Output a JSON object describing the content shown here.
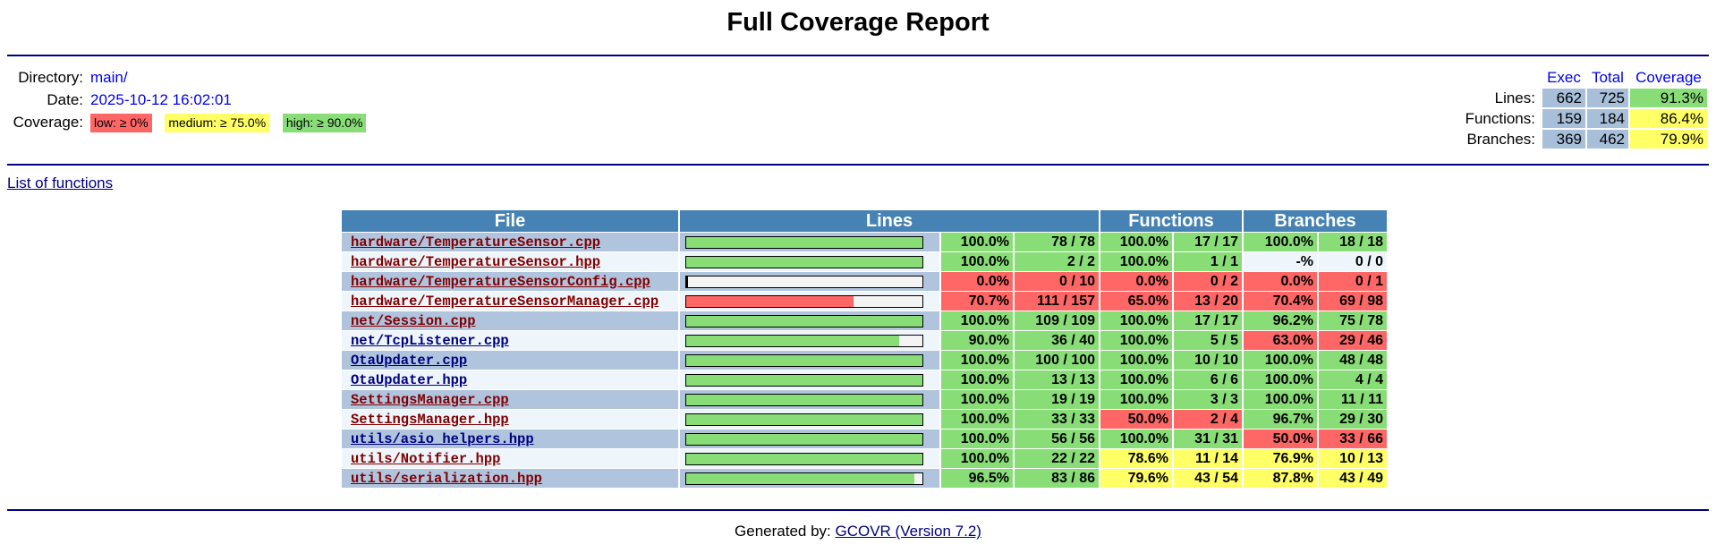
{
  "title": "Full Coverage Report",
  "info": {
    "directory_label": "Directory:",
    "directory_value": "main/",
    "date_label": "Date:",
    "date_value": "2025-10-12 16:02:01",
    "coverage_label": "Coverage:",
    "legend": {
      "low": "low: ≥ 0%",
      "medium": "medium: ≥ 75.0%",
      "high": "high: ≥ 90.0%"
    }
  },
  "summary": {
    "headers": {
      "exec": "Exec",
      "total": "Total",
      "coverage": "Coverage"
    },
    "rows": [
      {
        "label": "Lines:",
        "exec": "662",
        "total": "725",
        "coverage": "91.3%",
        "level": "high"
      },
      {
        "label": "Functions:",
        "exec": "159",
        "total": "184",
        "coverage": "86.4%",
        "level": "medium"
      },
      {
        "label": "Branches:",
        "exec": "369",
        "total": "462",
        "coverage": "79.9%",
        "level": "medium"
      }
    ]
  },
  "list_of_functions": "List of functions",
  "table": {
    "headers": {
      "file": "File",
      "lines": "Lines",
      "functions": "Functions",
      "branches": "Branches"
    },
    "rows": [
      {
        "file": "hardware/TemperatureSensor.cpp",
        "link": "low",
        "line_frac": 1.0,
        "line_pct": "100.0%",
        "line_cnt": "78 / 78",
        "line_level": "high",
        "func_pct": "100.0%",
        "func_cnt": "17 / 17",
        "func_level": "high",
        "br_pct": "100.0%",
        "br_cnt": "18 / 18",
        "br_level": "high"
      },
      {
        "file": "hardware/TemperatureSensor.hpp",
        "link": "low",
        "line_frac": 1.0,
        "line_pct": "100.0%",
        "line_cnt": "2 / 2",
        "line_level": "high",
        "func_pct": "100.0%",
        "func_cnt": "1 / 1",
        "func_level": "high",
        "br_pct": "-%",
        "br_cnt": "0 / 0",
        "br_level": "none"
      },
      {
        "file": "hardware/TemperatureSensorConfig.cpp",
        "link": "low",
        "line_frac": 0.0,
        "line_pct": "0.0%",
        "line_cnt": "0 / 10",
        "line_level": "low",
        "func_pct": "0.0%",
        "func_cnt": "0 / 2",
        "func_level": "low",
        "br_pct": "0.0%",
        "br_cnt": "0 / 1",
        "br_level": "low"
      },
      {
        "file": "hardware/TemperatureSensorManager.cpp",
        "link": "low",
        "line_frac": 0.707,
        "line_pct": "70.7%",
        "line_cnt": "111 / 157",
        "line_level": "low",
        "func_pct": "65.0%",
        "func_cnt": "13 / 20",
        "func_level": "low",
        "br_pct": "70.4%",
        "br_cnt": "69 / 98",
        "br_level": "low"
      },
      {
        "file": "net/Session.cpp",
        "link": "low",
        "line_frac": 1.0,
        "line_pct": "100.0%",
        "line_cnt": "109 / 109",
        "line_level": "high",
        "func_pct": "100.0%",
        "func_cnt": "17 / 17",
        "func_level": "high",
        "br_pct": "96.2%",
        "br_cnt": "75 / 78",
        "br_level": "high"
      },
      {
        "file": "net/TcpListener.cpp",
        "link": "high",
        "line_frac": 0.9,
        "line_pct": "90.0%",
        "line_cnt": "36 / 40",
        "line_level": "high",
        "func_pct": "100.0%",
        "func_cnt": "5 / 5",
        "func_level": "high",
        "br_pct": "63.0%",
        "br_cnt": "29 / 46",
        "br_level": "low"
      },
      {
        "file": "OtaUpdater.cpp",
        "link": "high",
        "line_frac": 1.0,
        "line_pct": "100.0%",
        "line_cnt": "100 / 100",
        "line_level": "high",
        "func_pct": "100.0%",
        "func_cnt": "10 / 10",
        "func_level": "high",
        "br_pct": "100.0%",
        "br_cnt": "48 / 48",
        "br_level": "high"
      },
      {
        "file": "OtaUpdater.hpp",
        "link": "high",
        "line_frac": 1.0,
        "line_pct": "100.0%",
        "line_cnt": "13 / 13",
        "line_level": "high",
        "func_pct": "100.0%",
        "func_cnt": "6 / 6",
        "func_level": "high",
        "br_pct": "100.0%",
        "br_cnt": "4 / 4",
        "br_level": "high"
      },
      {
        "file": "SettingsManager.cpp",
        "link": "low",
        "line_frac": 1.0,
        "line_pct": "100.0%",
        "line_cnt": "19 / 19",
        "line_level": "high",
        "func_pct": "100.0%",
        "func_cnt": "3 / 3",
        "func_level": "high",
        "br_pct": "100.0%",
        "br_cnt": "11 / 11",
        "br_level": "high"
      },
      {
        "file": "SettingsManager.hpp",
        "link": "low",
        "line_frac": 1.0,
        "line_pct": "100.0%",
        "line_cnt": "33 / 33",
        "line_level": "high",
        "func_pct": "50.0%",
        "func_cnt": "2 / 4",
        "func_level": "low",
        "br_pct": "96.7%",
        "br_cnt": "29 / 30",
        "br_level": "high"
      },
      {
        "file": "utils/asio_helpers.hpp",
        "link": "high",
        "line_frac": 1.0,
        "line_pct": "100.0%",
        "line_cnt": "56 / 56",
        "line_level": "high",
        "func_pct": "100.0%",
        "func_cnt": "31 / 31",
        "func_level": "high",
        "br_pct": "50.0%",
        "br_cnt": "33 / 66",
        "br_level": "low"
      },
      {
        "file": "utils/Notifier.hpp",
        "link": "low",
        "line_frac": 1.0,
        "line_pct": "100.0%",
        "line_cnt": "22 / 22",
        "line_level": "high",
        "func_pct": "78.6%",
        "func_cnt": "11 / 14",
        "func_level": "medium",
        "br_pct": "76.9%",
        "br_cnt": "10 / 13",
        "br_level": "medium"
      },
      {
        "file": "utils/serialization.hpp",
        "link": "low",
        "line_frac": 0.965,
        "line_pct": "96.5%",
        "line_cnt": "83 / 86",
        "line_level": "high",
        "func_pct": "79.6%",
        "func_cnt": "43 / 54",
        "func_level": "medium",
        "br_pct": "87.8%",
        "br_cnt": "43 / 49",
        "br_level": "medium"
      }
    ]
  },
  "footer": {
    "prefix": "Generated by: ",
    "link": "GCOVR (Version 7.2)"
  },
  "colors": {
    "low": "#ff6666",
    "medium": "#ffff66",
    "high": "#88dd77",
    "none": "#eef6fb",
    "header": "#4682b4",
    "link_low": "#800000",
    "link_high": "#000080"
  }
}
